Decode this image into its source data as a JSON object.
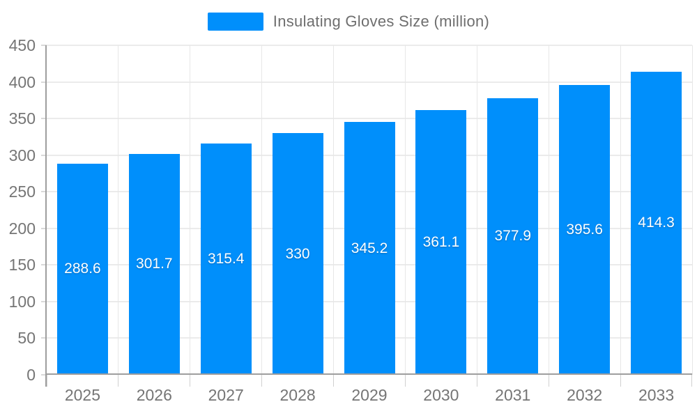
{
  "chart_data": {
    "type": "bar",
    "title": "",
    "xlabel": "",
    "ylabel": "",
    "legend": {
      "label": "Insulating Gloves Size (million)",
      "position": "top",
      "marker_color": "#008FFB"
    },
    "categories": [
      "2025",
      "2026",
      "2027",
      "2028",
      "2029",
      "2030",
      "2031",
      "2032",
      "2033"
    ],
    "series": [
      {
        "name": "Insulating Gloves Size (million)",
        "values": [
          288.6,
          301.7,
          315.4,
          330,
          345.2,
          361.1,
          377.9,
          395.6,
          414.3
        ]
      }
    ],
    "y_ticks": [
      0,
      50,
      100,
      150,
      200,
      250,
      300,
      350,
      400,
      450
    ],
    "ylim": [
      0,
      450
    ],
    "grid": true,
    "value_labels_inside_bars": true,
    "colors": {
      "bar": "#008FFB",
      "axis_line": "#9e9e9e",
      "gridline": "#e9e9e9",
      "tick_label": "#757575",
      "legend_text": "#6e6e6e",
      "value_label": "#ffffff",
      "background": "#ffffff"
    }
  }
}
